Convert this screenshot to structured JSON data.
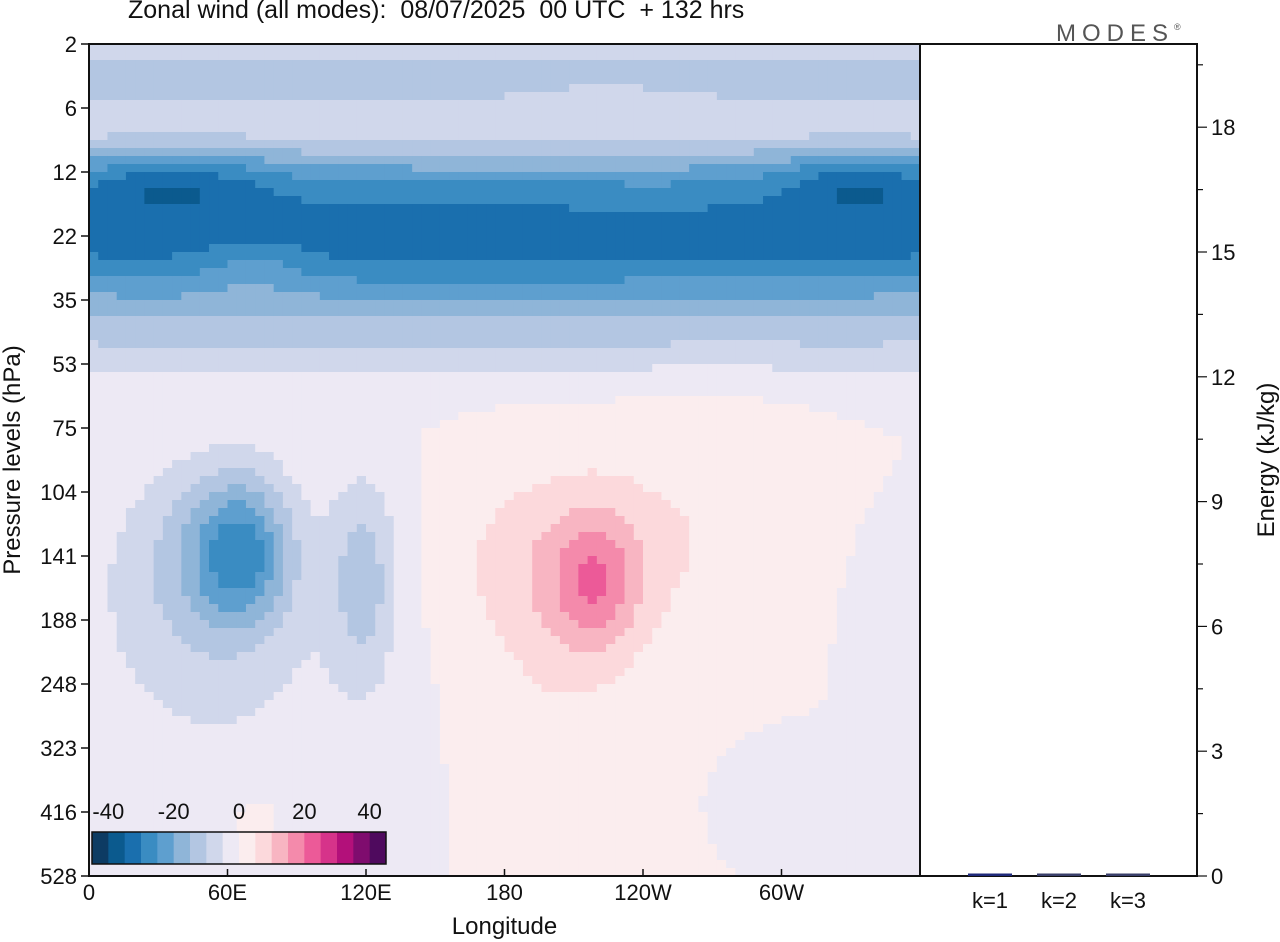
{
  "header": {
    "title": "Zonal wind (all modes):  08/07/2025  00 UTC  + 132 hrs",
    "logo_text": "MODES",
    "logo_mark": "®"
  },
  "chart_data": [
    {
      "type": "heatmap",
      "title": "Zonal wind (all modes):  08/07/2025  00 UTC  + 132 hrs",
      "xlabel": "Longitude",
      "ylabel": "Pressure levels (hPa)",
      "x_ticks": [
        "0",
        "60E",
        "120E",
        "180",
        "120W",
        "60W"
      ],
      "y_ticks": [
        "2",
        "6",
        "12",
        "22",
        "35",
        "53",
        "75",
        "104",
        "141",
        "188",
        "248",
        "323",
        "416",
        "528"
      ],
      "y_scale": "log, inverted (2 hPa at top, 528 hPa at bottom)",
      "xlim": [
        0,
        360
      ],
      "colorbar": {
        "tick_labels": [
          "-40",
          "-20",
          "0",
          "20",
          "40"
        ],
        "bounds": [
          -45,
          -40,
          -35,
          -30,
          -25,
          -20,
          -15,
          -10,
          -5,
          0,
          5,
          10,
          15,
          20,
          25,
          30,
          35,
          40,
          45
        ],
        "colors": [
          "#0d3b63",
          "#0b5a8e",
          "#1a6fae",
          "#3a8cc2",
          "#5e9fcf",
          "#8fb5d8",
          "#b3c6e2",
          "#d0d7eb",
          "#ede9f4",
          "#fbedee",
          "#fcd9dc",
          "#f8b5c2",
          "#f48aab",
          "#ec5a98",
          "#d6338a",
          "#b3107a",
          "#7f0c6e",
          "#4f0a5e"
        ],
        "location": "bottom-left inset"
      },
      "features": [
        {
          "label": "upper-level easterly band",
          "pressure_hPa": [
            8,
            28
          ],
          "value_approx": -30
        },
        {
          "label": "easterly core near 20E-40E",
          "pressure_hPa": [
            10,
            15
          ],
          "value_approx": -40
        },
        {
          "label": "easterly core near 330E-355E",
          "pressure_hPa": [
            10,
            15
          ],
          "value_approx": -40
        },
        {
          "label": "easterly jet near 60E-75E",
          "pressure_hPa": [
            104,
            188
          ],
          "value_approx": -30
        },
        {
          "label": "westerly maximum near 200E",
          "pressure_hPa": [
            120,
            230
          ],
          "value_approx": 15
        }
      ]
    },
    {
      "type": "bar",
      "ylabel": "Energy (kJ/kg)",
      "categories": [
        "k=1",
        "k=2",
        "k=3"
      ],
      "values": [
        0.05,
        0.02,
        0.01
      ],
      "ylim": [
        0,
        20
      ],
      "y_ticks": [
        "0",
        "3",
        "6",
        "9",
        "12",
        "15",
        "18"
      ],
      "y_axis_side": "right"
    }
  ]
}
